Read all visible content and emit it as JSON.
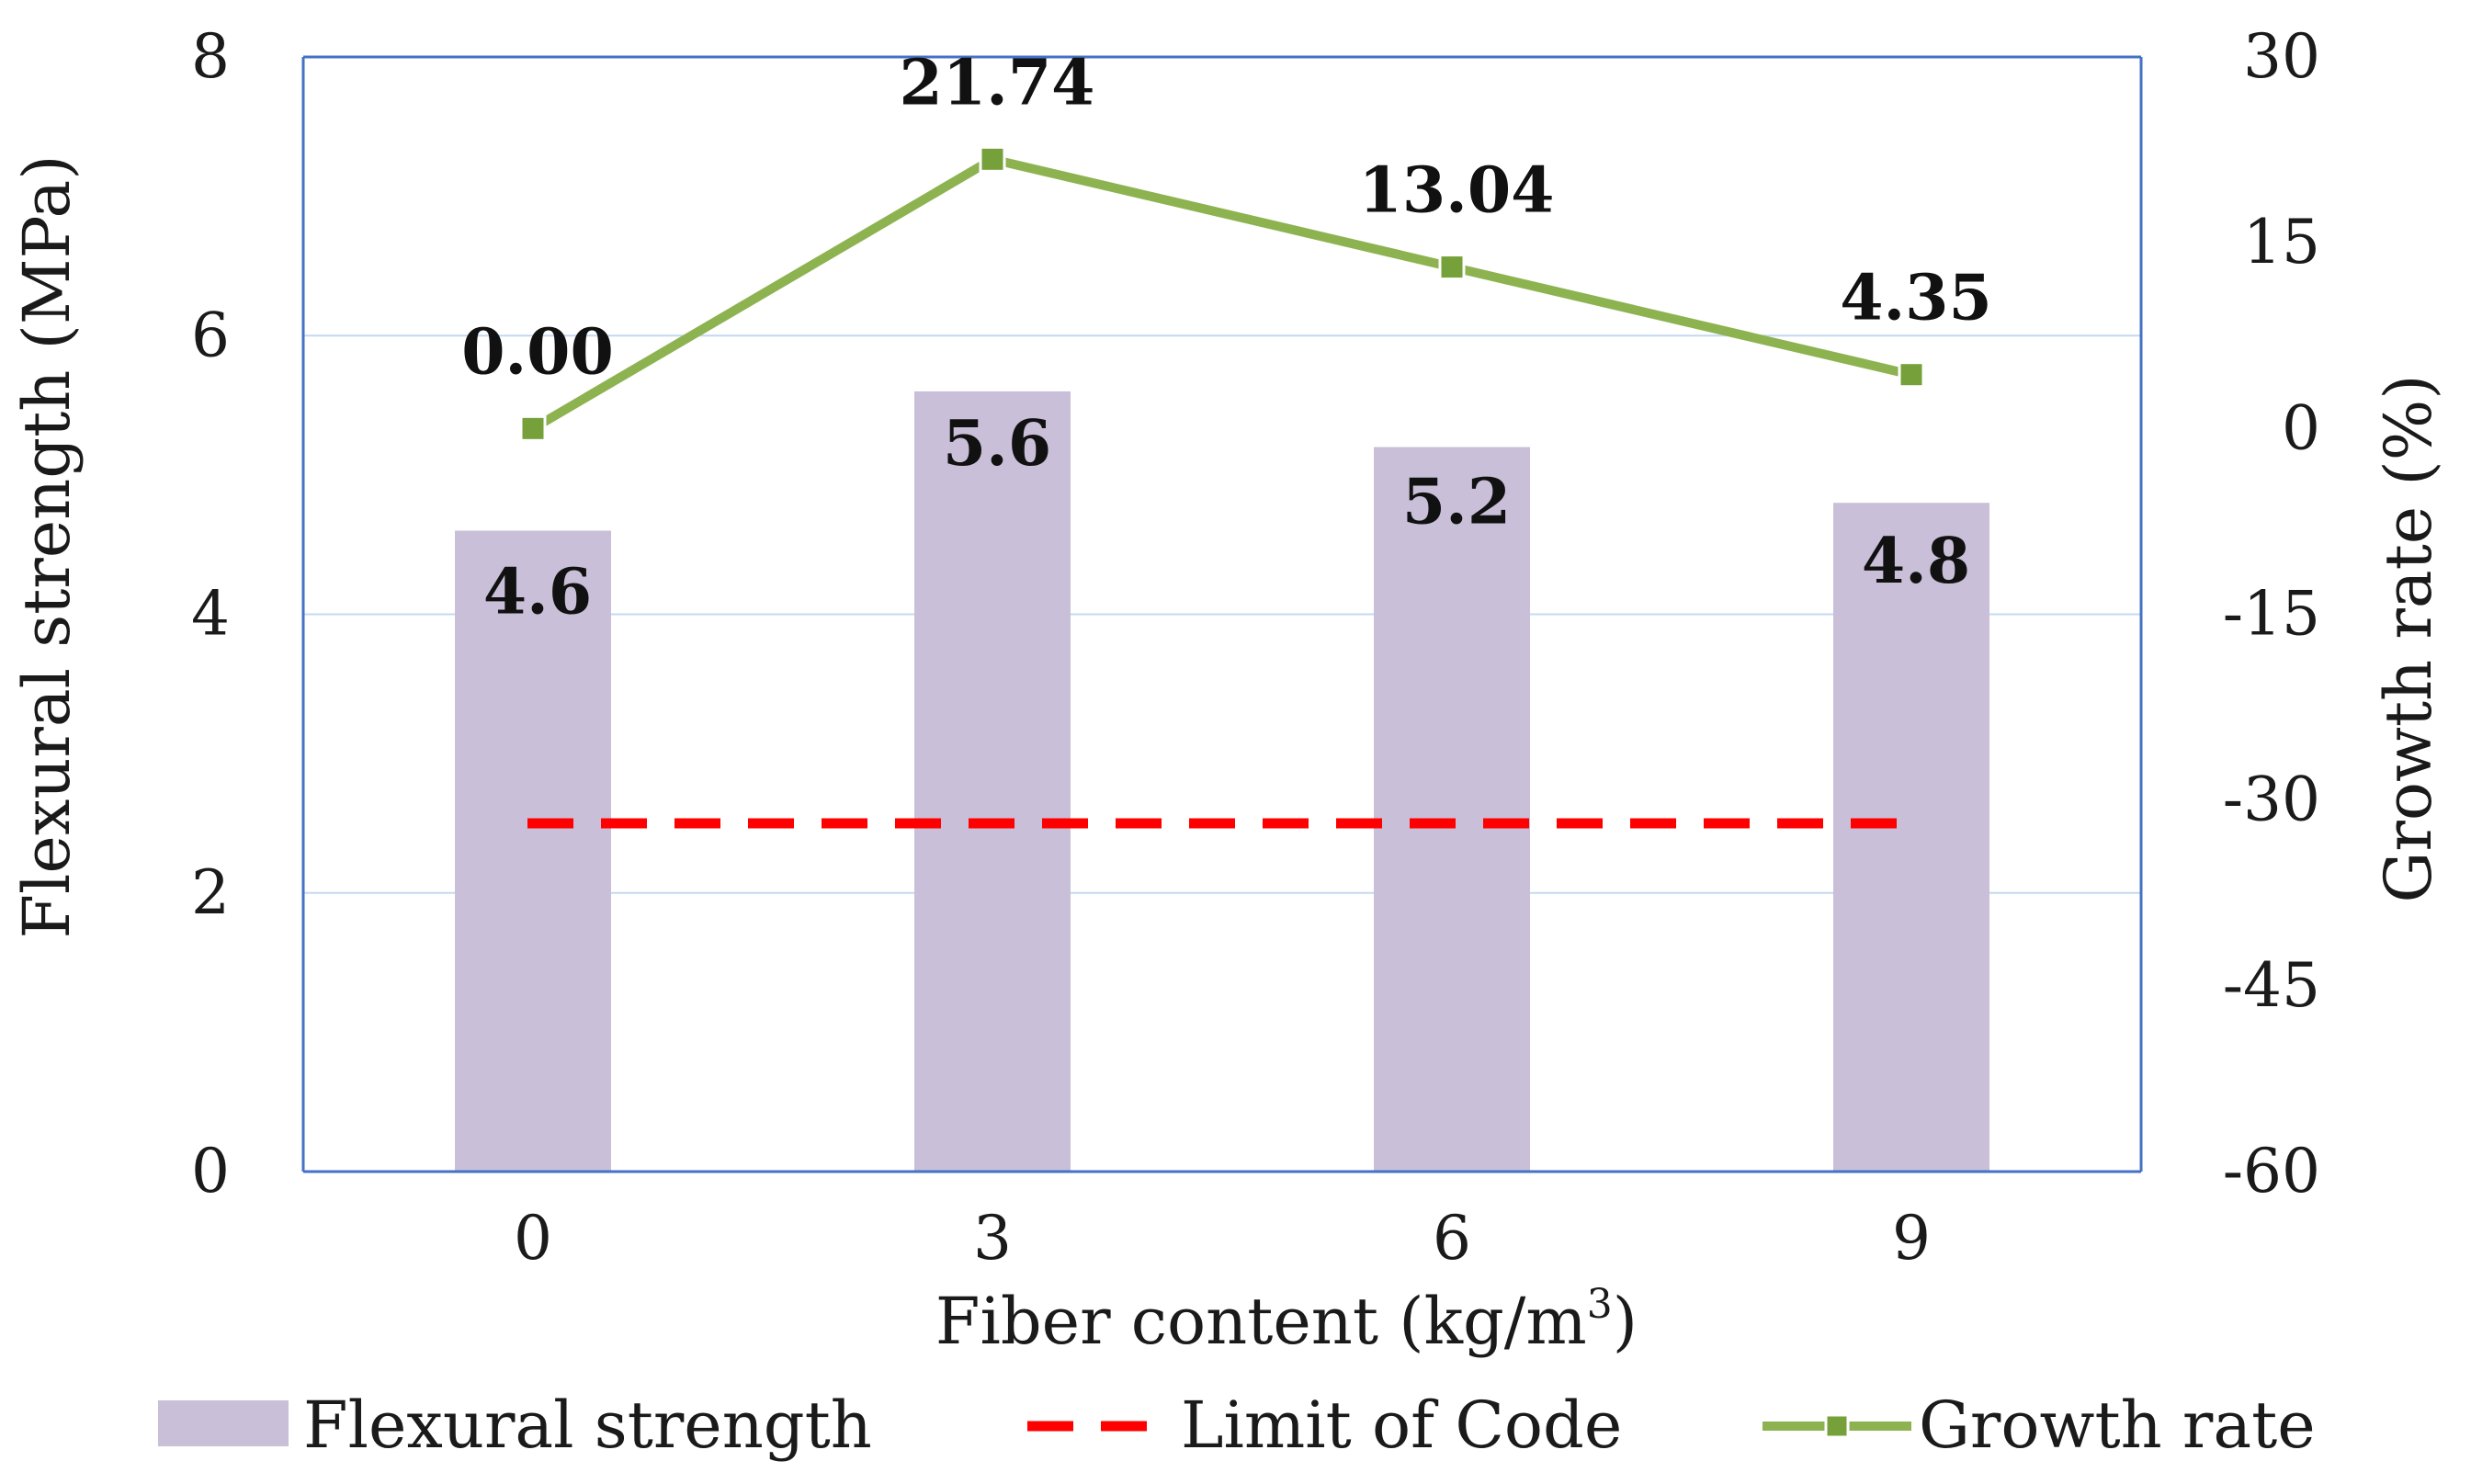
{
  "chart_data": {
    "type": "bar",
    "categories": [
      "0",
      "3",
      "6",
      "9"
    ],
    "series": [
      {
        "name": "Flexural strength",
        "kind": "bar",
        "axis": "left",
        "values": [
          4.6,
          5.6,
          5.2,
          4.8
        ],
        "labels": [
          "4.6",
          "5.6",
          "5.2",
          "4.8"
        ],
        "color": "#c9bfd9"
      },
      {
        "name": "Limit of Code",
        "kind": "dashed-line",
        "axis": "left",
        "values": [
          2.5,
          2.5,
          2.5,
          2.5
        ],
        "color": "#ff0000"
      },
      {
        "name": "Growth rate",
        "kind": "line-marker",
        "axis": "right",
        "values": [
          0.0,
          21.74,
          13.04,
          4.35
        ],
        "labels": [
          "0.00",
          "21.74",
          "13.04",
          "4.35"
        ],
        "color": "#8db351",
        "marker_color": "#76a13a"
      }
    ],
    "xlabel": "Fiber content (kg/m",
    "xlabel_sup": "3",
    "xlabel_end": ")",
    "ylabel": "Flexural strength (MPa)",
    "y2label": "Growth rate (%)",
    "ylim": [
      0,
      8
    ],
    "y2lim": [
      -60,
      30
    ],
    "yticks": [
      "0",
      "2",
      "4",
      "6",
      "8"
    ],
    "y2ticks": [
      "-60",
      "-45",
      "-30",
      "-15",
      "0",
      "15",
      "30"
    ],
    "grid": true,
    "axis_color": "#4472c4",
    "grid_color": "#c5d9f1",
    "legend": {
      "placement": "bottom",
      "items": [
        "Flexural strength",
        "Limit of Code",
        "Growth rate"
      ]
    }
  }
}
